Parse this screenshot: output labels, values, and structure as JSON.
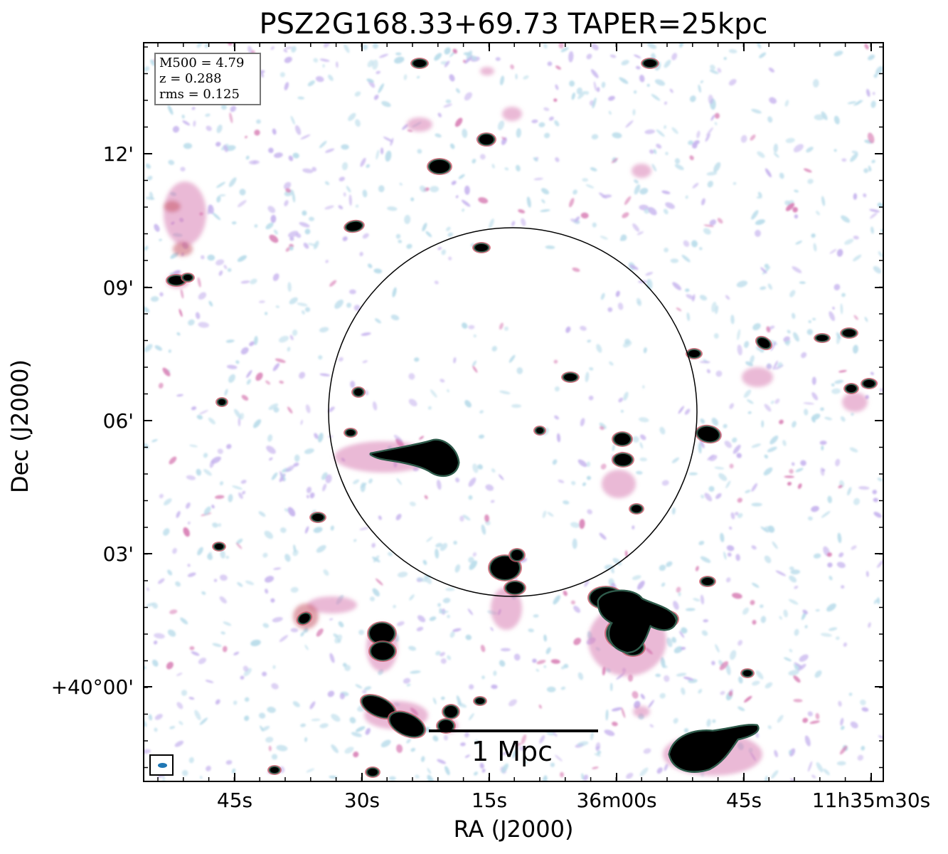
{
  "title": "PSZ2G168.33+69.73 TAPER=25kpc",
  "info_box": {
    "m500": "M500 = 4.79",
    "redshift": "z = 0.288",
    "rms": "rms = 0.125"
  },
  "axes": {
    "xlabel": "RA (J2000)",
    "ylabel": "Dec (J2000)",
    "xticks": [
      "45s",
      "30s",
      "15s",
      "36m00s",
      "45s",
      "11h35m30s"
    ],
    "yticks": [
      "12'",
      "09'",
      "06'",
      "03'",
      "+40°00'"
    ]
  },
  "scale_bar": {
    "label": "1 Mpc"
  },
  "beam": {
    "color": "#1f77b4"
  },
  "colors": {
    "noise_light": "#b9dcea",
    "noise_lilac": "#c7b4ee",
    "emission_pink": "#d87fb5",
    "emission_red": "#c85a6a",
    "emission_green": "#2e5a4a",
    "emission_core": "#000000"
  }
}
